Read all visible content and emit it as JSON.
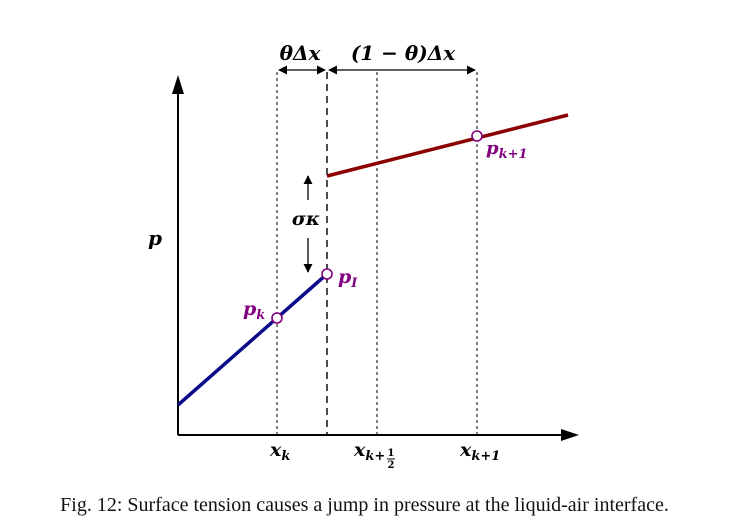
{
  "labels": {
    "y_axis": "p",
    "theta_dx": "θΔx",
    "one_minus_theta_dx": "(1 − θ)Δx",
    "sigma_kappa": "σκ",
    "p_k": {
      "base": "p",
      "sub": "k"
    },
    "p_I": {
      "base": "p",
      "sub": "I"
    },
    "p_k1": {
      "base": "p",
      "sub": "k+1"
    },
    "x_k": {
      "base": "x",
      "sub": "k"
    },
    "x_khalf": {
      "base": "x",
      "sub": "k+",
      "frac_num": "1",
      "frac_den": "2"
    },
    "x_k1": {
      "base": "x",
      "sub": "k+1"
    }
  },
  "caption": "Fig. 12: Surface tension causes a jump in pressure at the liquid-air interface.",
  "colors": {
    "liquid_line": "#0a0a8a",
    "air_line": "#8b0000",
    "point_stroke": "#800080",
    "point_label": "#800080",
    "axis": "#000000"
  }
}
